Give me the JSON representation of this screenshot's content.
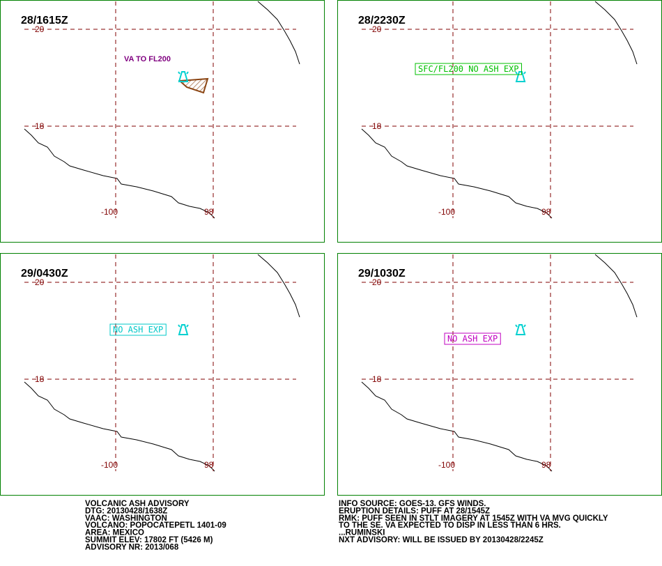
{
  "panels": [
    {
      "time": "28/1615Z",
      "lat_labels": [
        "20",
        "18"
      ],
      "lon_labels": [
        "-100",
        "98"
      ],
      "annotation": {
        "text": "VA TO FL200",
        "color": "#800080",
        "boxed": false
      },
      "ash_area": true
    },
    {
      "time": "28/2230Z",
      "lat_labels": [
        "20",
        "18"
      ],
      "lon_labels": [
        "-100",
        "98"
      ],
      "annotation": {
        "text": "SFC/FL200 NO ASH EXP",
        "color": "#00c000",
        "boxed": true
      },
      "ash_area": false
    },
    {
      "time": "29/0430Z",
      "lat_labels": [
        "20",
        "18"
      ],
      "lon_labels": [
        "-100",
        "98"
      ],
      "annotation": {
        "text": "NO ASH EXP",
        "color": "#00c8c8",
        "boxed": true
      },
      "ash_area": false
    },
    {
      "time": "29/1030Z",
      "lat_labels": [
        "20",
        "18"
      ],
      "lon_labels": [
        "-100",
        "98"
      ],
      "annotation": {
        "text": "NO ASH EXP",
        "color": "#c000c0",
        "boxed": true
      },
      "ash_area": false
    }
  ],
  "footer": {
    "left": [
      "VOLCANIC ASH ADVISORY",
      "DTG: 20130428/1638Z",
      "VAAC: WASHINGTON",
      "VOLCANO: POPOCATEPETL 1401-09",
      "AREA: MEXICO",
      "SUMMIT ELEV: 17802 FT (5426 M)",
      "ADVISORY NR: 2013/068"
    ],
    "right": [
      "INFO SOURCE: GOES-13. GFS WINDS.",
      "ERUPTION DETAILS: PUFF AT 28/1545Z",
      "RMK: PUFF SEEN IN STLT IMAGERY AT 1545Z WITH VA MVG QUICKLY",
      "TO THE SE. VA EXPECTED TO DISP IN LESS THAN 6 HRS.",
      "...RUMINSKI",
      "NXT ADVISORY: WILL BE ISSUED BY 20130428/2245Z"
    ]
  }
}
